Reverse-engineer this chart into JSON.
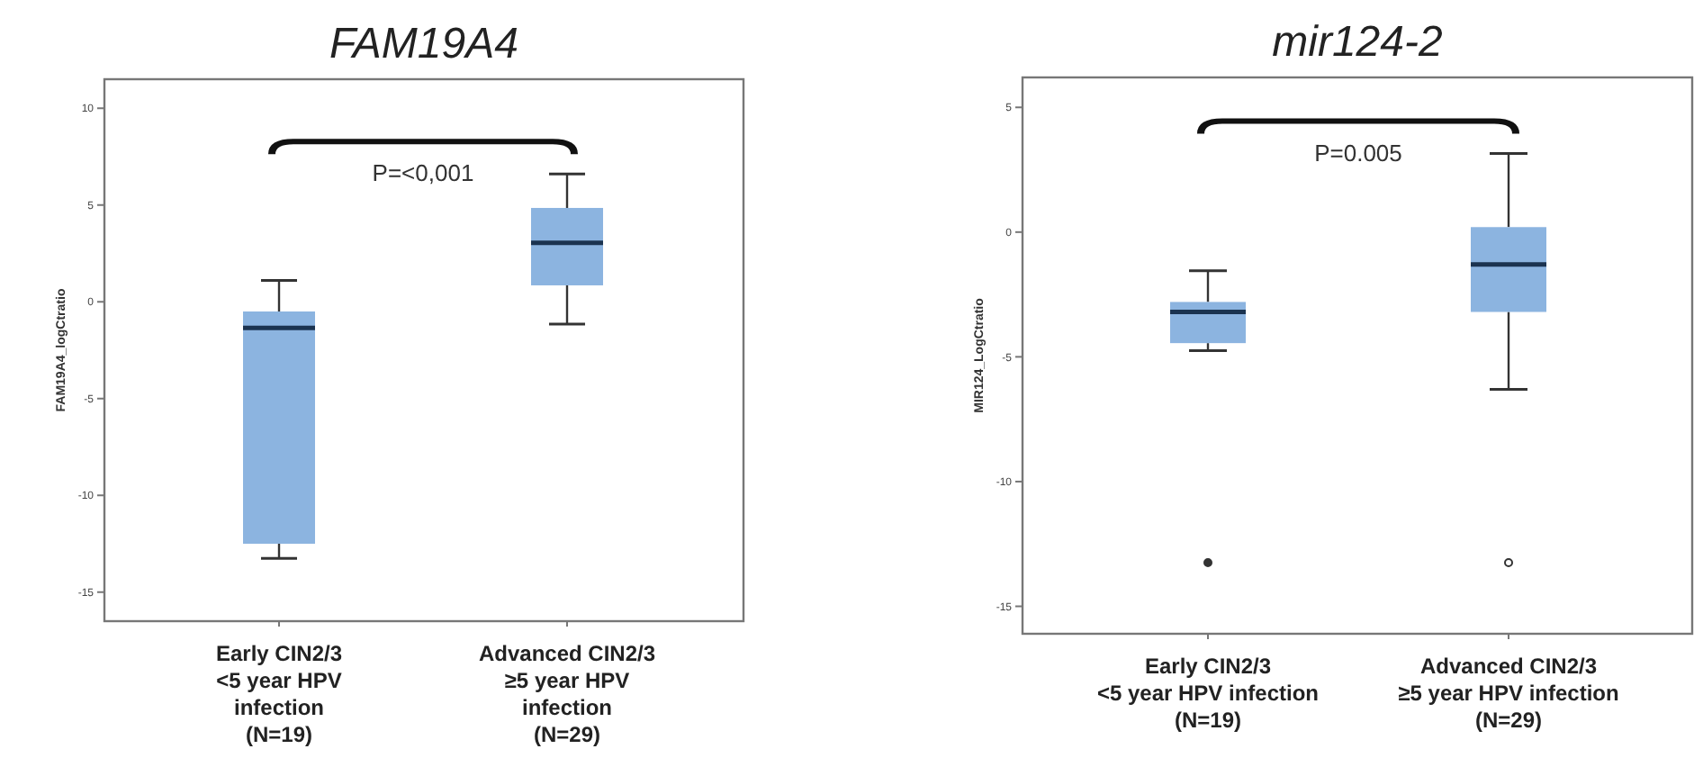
{
  "chart_data": [
    {
      "type": "box",
      "title": "FAM19A4",
      "ylabel": "FAM19A4_logCtratio",
      "categories": [
        "Early CIN2/3\n<5 year HPV\ninfection\n(N=19)",
        "Advanced CIN2/3\n≥5 year HPV\ninfection\n(N=29)"
      ],
      "color": "#8cb4e0",
      "ylim": [
        -16.5,
        11.5
      ],
      "yticks": [
        -15,
        -10,
        -5,
        0,
        5,
        10
      ],
      "grid": false,
      "annotations": [
        "P=<0,001"
      ],
      "boxes": [
        {
          "low": -13.25,
          "q1": -12.5,
          "median": -1.35,
          "q3": -0.5,
          "high": 1.1
        },
        {
          "low": -1.15,
          "q1": 0.85,
          "median": 3.05,
          "q3": 4.85,
          "high": 6.6
        }
      ]
    },
    {
      "type": "box",
      "title": "mir124-2",
      "ylabel": "MIR124_LogCtratio",
      "categories": [
        "Early CIN2/3\n<5 year HPV infection\n(N=19)",
        "Advanced CIN2/3\n≥5 year HPV infection\n(N=29)"
      ],
      "color": "#8cb4e0",
      "ylim": [
        -16.1,
        6.2
      ],
      "yticks": [
        -15,
        -10,
        -5,
        0,
        5
      ],
      "grid": false,
      "annotations": [
        "P=0.005"
      ],
      "boxes": [
        {
          "low": -4.75,
          "q1": -4.45,
          "median": -3.2,
          "q3": -2.8,
          "high": -1.55,
          "outliers": [
            -13.25
          ]
        },
        {
          "low": -6.3,
          "q1": -3.2,
          "median": -1.3,
          "q3": 0.2,
          "high": 3.15,
          "outliers": [
            -13.25
          ]
        }
      ]
    }
  ]
}
